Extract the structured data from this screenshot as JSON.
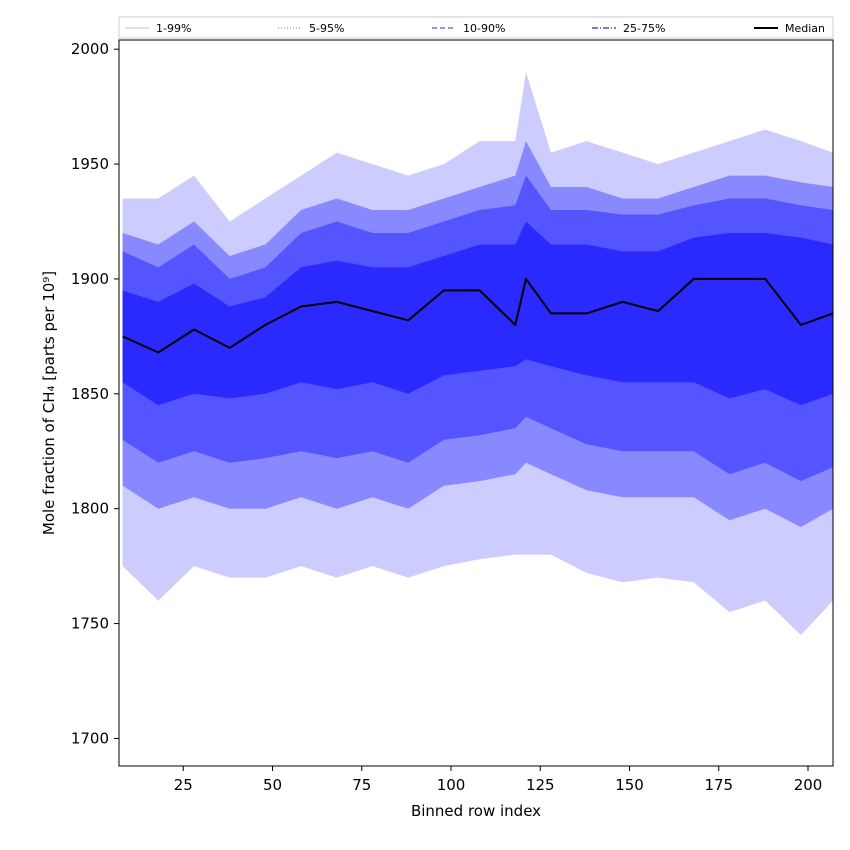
{
  "chart_data": {
    "type": "area",
    "xlabel": "Binned row index",
    "ylabel": "Mole fraction of CH₄ [parts per 10⁹]",
    "xlim": [
      7,
      207
    ],
    "ylim": [
      1688,
      2004
    ],
    "x_ticks": [
      25,
      50,
      75,
      100,
      125,
      150,
      175,
      200
    ],
    "y_ticks": [
      1700,
      1750,
      1800,
      1850,
      1900,
      1950,
      2000
    ],
    "grid": false,
    "legend_position": "top",
    "legend": [
      {
        "label": "1-99%",
        "color": "#ccccff",
        "style": "solid"
      },
      {
        "label": "5-95%",
        "color": "#8888ff",
        "style": "dotted"
      },
      {
        "label": "10-90%",
        "color": "#5555ff",
        "style": "dashed"
      },
      {
        "label": "25-75%",
        "color": "#2222ff",
        "style": "dashdot"
      },
      {
        "label": "Median",
        "color": "#000000",
        "style": "solid"
      }
    ],
    "band_colors": [
      "#ccccff",
      "#8888ff",
      "#5555ff",
      "#2a2aff"
    ],
    "median_color": "#000000",
    "x": [
      8,
      18,
      28,
      38,
      48,
      58,
      68,
      78,
      88,
      98,
      108,
      118,
      121,
      128,
      138,
      148,
      158,
      168,
      178,
      188,
      198,
      207
    ],
    "series": [
      {
        "name": "1-99%",
        "lower": [
          1775,
          1760,
          1775,
          1770,
          1770,
          1775,
          1770,
          1775,
          1770,
          1775,
          1778,
          1780,
          1780,
          1780,
          1772,
          1768,
          1770,
          1768,
          1755,
          1760,
          1745,
          1760
        ],
        "upper": [
          1935,
          1935,
          1945,
          1925,
          1935,
          1945,
          1955,
          1950,
          1945,
          1950,
          1960,
          1960,
          1990,
          1955,
          1960,
          1955,
          1950,
          1955,
          1960,
          1965,
          1960,
          1955
        ]
      },
      {
        "name": "5-95%",
        "lower": [
          1810,
          1800,
          1805,
          1800,
          1800,
          1805,
          1800,
          1805,
          1800,
          1810,
          1812,
          1815,
          1820,
          1815,
          1808,
          1805,
          1805,
          1805,
          1795,
          1800,
          1792,
          1800
        ],
        "upper": [
          1920,
          1915,
          1925,
          1910,
          1915,
          1930,
          1935,
          1930,
          1930,
          1935,
          1940,
          1945,
          1960,
          1940,
          1940,
          1935,
          1935,
          1940,
          1945,
          1945,
          1942,
          1940
        ]
      },
      {
        "name": "10-90%",
        "lower": [
          1830,
          1820,
          1825,
          1820,
          1822,
          1825,
          1822,
          1825,
          1820,
          1830,
          1832,
          1835,
          1840,
          1835,
          1828,
          1825,
          1825,
          1825,
          1815,
          1820,
          1812,
          1818
        ],
        "upper": [
          1912,
          1905,
          1915,
          1900,
          1905,
          1920,
          1925,
          1920,
          1920,
          1925,
          1930,
          1932,
          1945,
          1930,
          1930,
          1928,
          1928,
          1932,
          1935,
          1935,
          1932,
          1930
        ]
      },
      {
        "name": "25-75%",
        "lower": [
          1855,
          1845,
          1850,
          1848,
          1850,
          1855,
          1852,
          1855,
          1850,
          1858,
          1860,
          1862,
          1865,
          1862,
          1858,
          1855,
          1855,
          1855,
          1848,
          1852,
          1845,
          1850
        ],
        "upper": [
          1895,
          1890,
          1898,
          1888,
          1892,
          1905,
          1908,
          1905,
          1905,
          1910,
          1915,
          1915,
          1925,
          1915,
          1915,
          1912,
          1912,
          1918,
          1920,
          1920,
          1918,
          1915
        ]
      },
      {
        "name": "Median",
        "values": [
          1875,
          1868,
          1878,
          1870,
          1880,
          1888,
          1890,
          1886,
          1882,
          1895,
          1895,
          1880,
          1900,
          1885,
          1885,
          1890,
          1886,
          1900,
          1900,
          1900,
          1880,
          1885
        ]
      }
    ]
  }
}
